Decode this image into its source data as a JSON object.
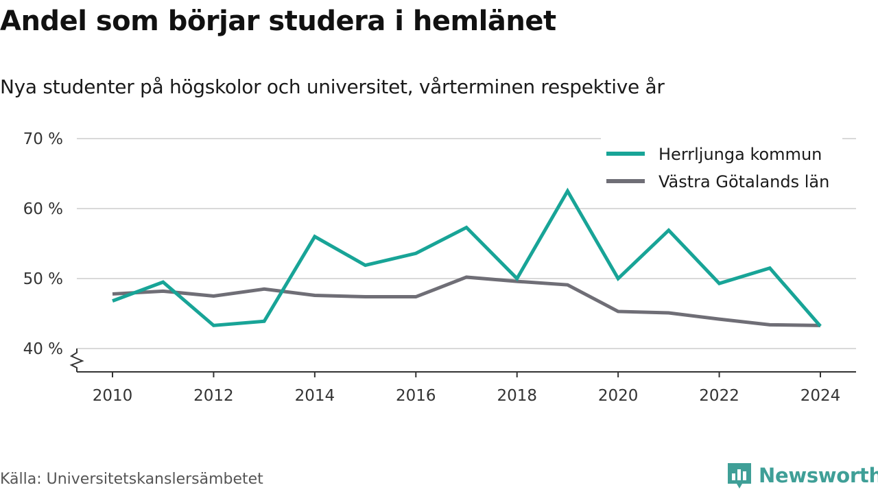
{
  "title": "Andel som börjar studera i hemlänet",
  "subtitle": "Nya studenter på högskolor och universitet, vårterminen respektive år",
  "source": "Källa: Universitetskanslersämbetet",
  "brand": "Newsworthy",
  "colors": {
    "primary": "#18a497",
    "secondary": "#6f6e76",
    "grid": "#d9d9d9",
    "brand": "#3f9f97"
  },
  "chart_data": {
    "type": "line",
    "x": [
      2010,
      2011,
      2012,
      2013,
      2014,
      2015,
      2016,
      2017,
      2018,
      2019,
      2020,
      2021,
      2022,
      2023,
      2024
    ],
    "series": [
      {
        "name": "Herrljunga kommun",
        "color": "#18a497",
        "values": [
          46.8,
          49.5,
          43.3,
          43.9,
          56.0,
          51.9,
          53.6,
          57.3,
          50.0,
          62.5,
          50.0,
          56.9,
          49.3,
          51.5,
          43.2
        ]
      },
      {
        "name": "Västra Götalands län",
        "color": "#6f6e76",
        "values": [
          47.8,
          48.2,
          47.5,
          48.5,
          47.6,
          47.4,
          47.4,
          50.2,
          49.6,
          49.1,
          45.3,
          45.1,
          44.2,
          43.4,
          43.3
        ]
      }
    ],
    "xticks": [
      2010,
      2012,
      2014,
      2016,
      2018,
      2020,
      2022,
      2024
    ],
    "yticks": [
      40,
      50,
      60,
      70
    ],
    "ytick_labels": [
      "40 %",
      "50 %",
      "60 %",
      "70 %"
    ],
    "ylim": [
      40,
      70
    ],
    "xlim": [
      2010,
      2024
    ],
    "grid": true,
    "legend_position": "top-right",
    "axis_break": true
  }
}
